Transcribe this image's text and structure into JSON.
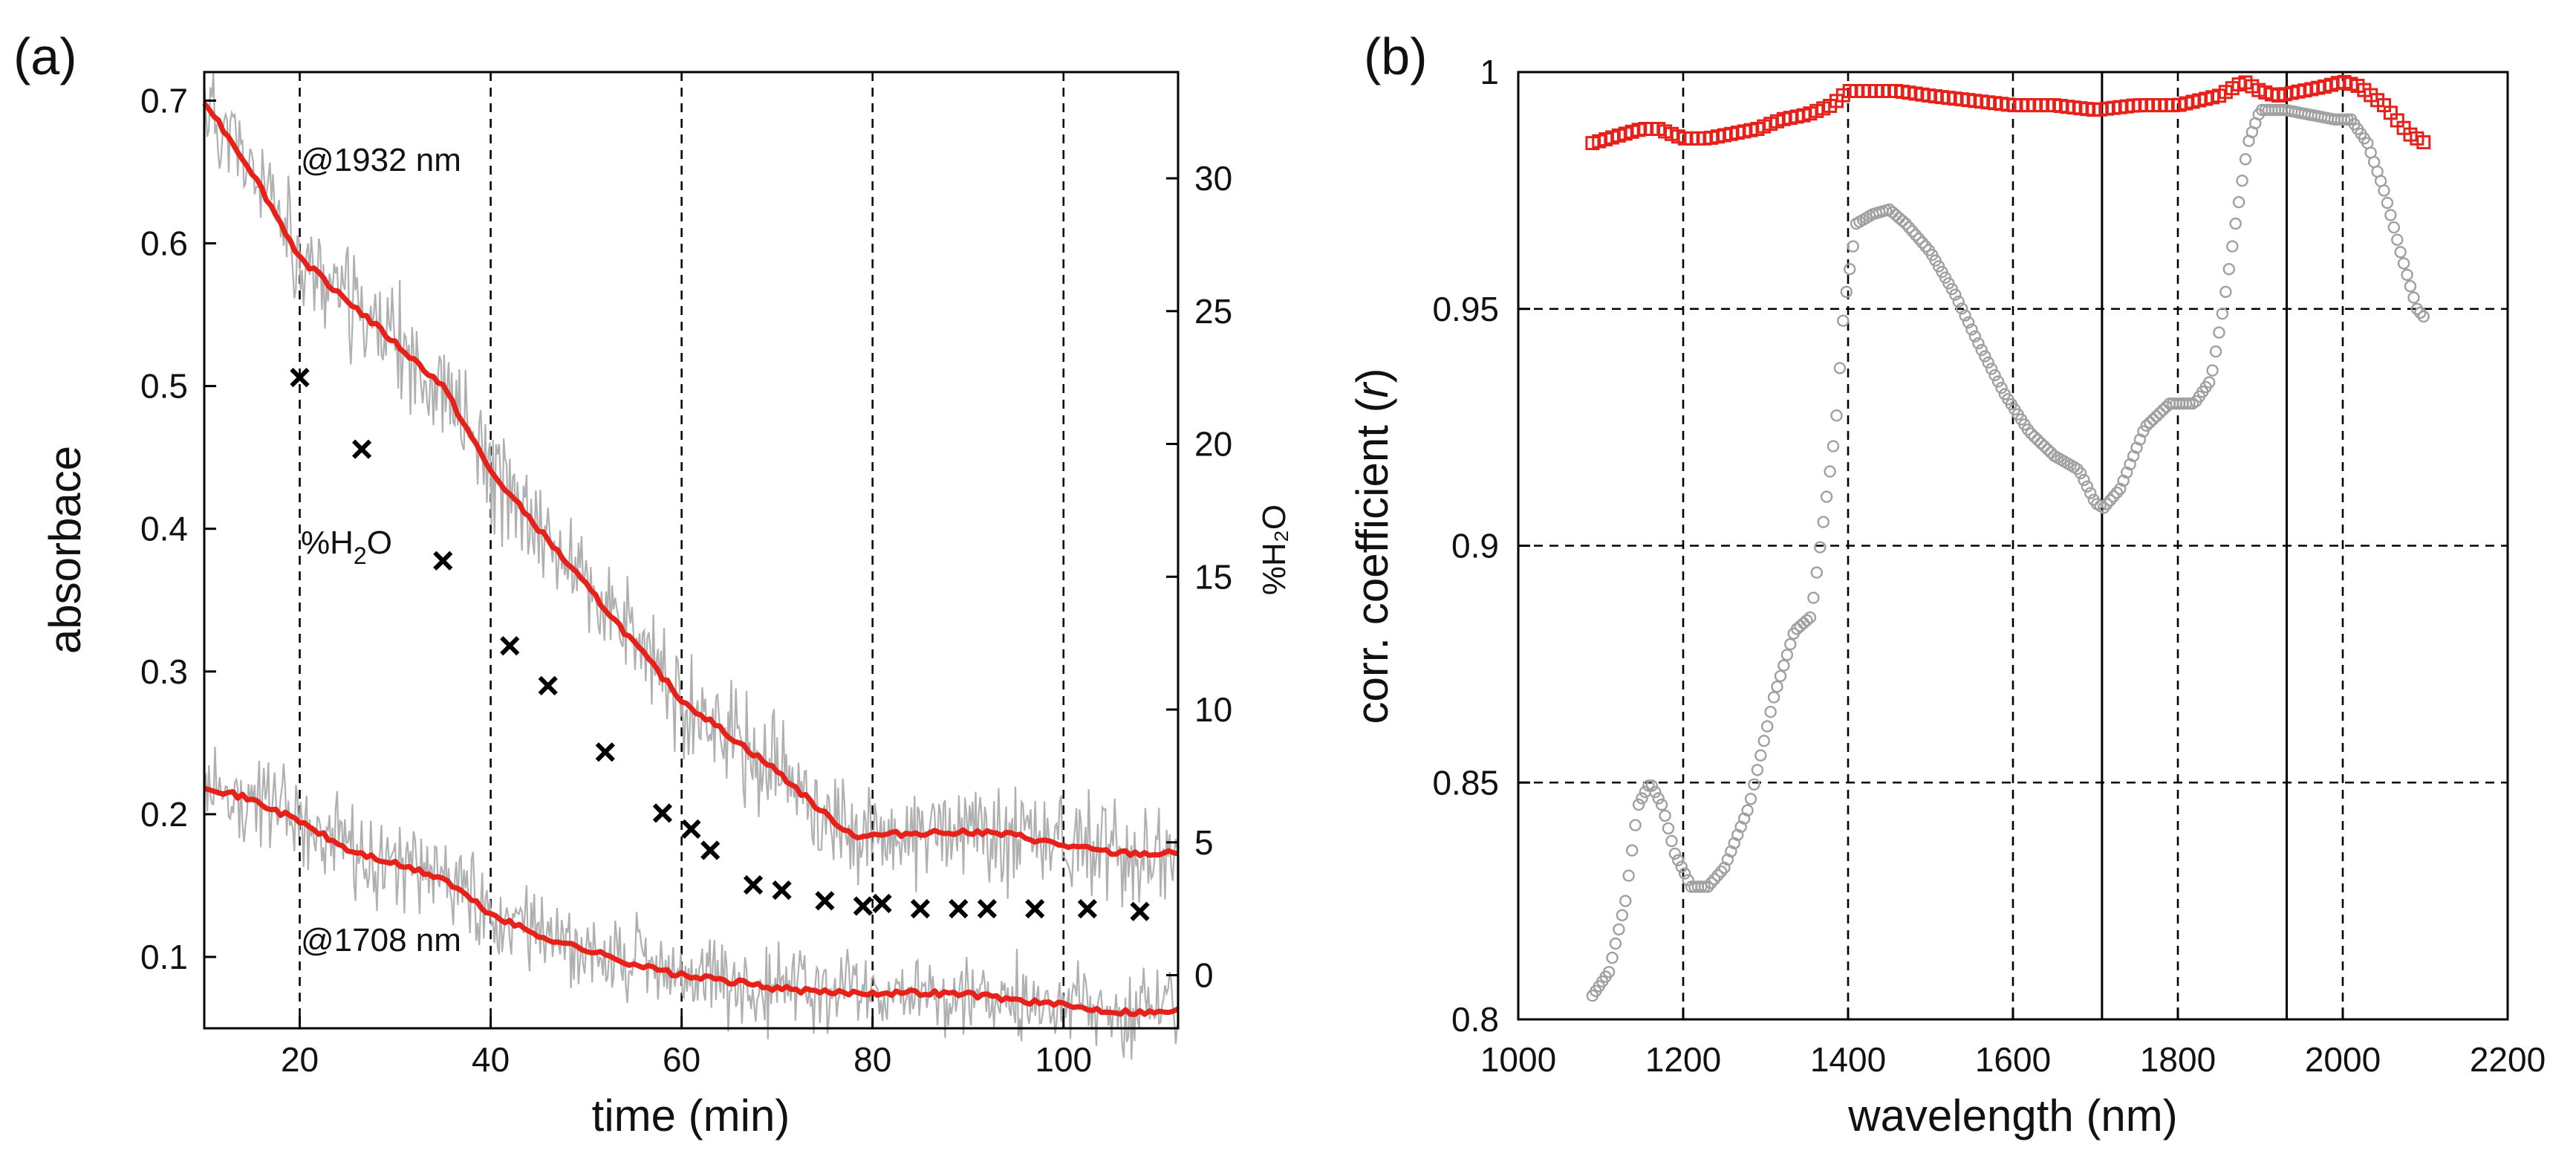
{
  "colors": {
    "red": "#e8201a",
    "gray": "#b0b0b0",
    "marker_gray": "#a0a0a0",
    "black": "#000000"
  },
  "chart_data": [
    {
      "type": "line",
      "panel_label": "(a)",
      "xlabel": "time (min)",
      "ylabel": "absorbace",
      "y2label": "%H₂O",
      "xlim": [
        10,
        112
      ],
      "ylim": [
        0.05,
        0.72
      ],
      "y2lim": [
        -2,
        34
      ],
      "xticks": [
        "20",
        "40",
        "60",
        "80",
        "100"
      ],
      "yticks": [
        "0.1",
        "0.2",
        "0.3",
        "0.4",
        "0.5",
        "0.6",
        "0.7"
      ],
      "y2ticks": [
        "0",
        "5",
        "10",
        "15",
        "20",
        "25",
        "30"
      ],
      "annotations": {
        "a1932": "@1932 nm",
        "a1708": "@1708 nm",
        "h2o_pre": "%H",
        "h2o_sub": "2",
        "h2o_post": "O"
      },
      "series": [
        {
          "name": "absorbance @1932 nm (smoothed)",
          "axis": "left",
          "color": "#e8201a",
          "x": [
            10,
            15,
            20,
            25,
            30,
            35,
            40,
            45,
            50,
            55,
            60,
            65,
            70,
            75,
            78,
            80,
            85,
            90,
            95,
            100,
            105,
            110,
            112
          ],
          "y": [
            0.7,
            0.65,
            0.59,
            0.56,
            0.53,
            0.5,
            0.44,
            0.4,
            0.36,
            0.32,
            0.28,
            0.255,
            0.23,
            0.2,
            0.185,
            0.185,
            0.187,
            0.188,
            0.185,
            0.178,
            0.173,
            0.172,
            0.173
          ]
        },
        {
          "name": "absorbance @1708 nm (smoothed)",
          "axis": "left",
          "color": "#e8201a",
          "x": [
            10,
            15,
            20,
            25,
            30,
            35,
            40,
            45,
            50,
            55,
            60,
            65,
            70,
            75,
            80,
            85,
            90,
            95,
            100,
            105,
            110,
            112
          ],
          "y": [
            0.22,
            0.21,
            0.195,
            0.175,
            0.165,
            0.155,
            0.13,
            0.115,
            0.105,
            0.095,
            0.087,
            0.083,
            0.078,
            0.075,
            0.075,
            0.075,
            0.074,
            0.07,
            0.066,
            0.062,
            0.061,
            0.063
          ]
        },
        {
          "name": "%H₂O",
          "axis": "right",
          "marker": "x",
          "color": "#000000",
          "x": [
            20,
            26.5,
            35,
            42,
            46,
            52,
            58,
            61,
            63,
            67.5,
            70.5,
            75,
            79,
            81,
            85,
            89,
            92,
            97,
            102.5,
            108
          ],
          "y": [
            22.5,
            19.8,
            15.6,
            12.4,
            10.9,
            8.4,
            6.1,
            5.5,
            4.7,
            3.4,
            3.2,
            2.8,
            2.6,
            2.7,
            2.5,
            2.5,
            2.5,
            2.5,
            2.5,
            2.4
          ]
        }
      ]
    },
    {
      "type": "scatter",
      "panel_label": "(b)",
      "xlabel": "wavelength (nm)",
      "ylabel_pre": "corr. coefficient (",
      "ylabel_var": "r",
      "ylabel_post": ")",
      "xlim": [
        1000,
        2200
      ],
      "ylim": [
        0.8,
        1.0
      ],
      "xticks": [
        "1000",
        "1200",
        "1400",
        "1600",
        "1800",
        "2000",
        "2200"
      ],
      "yticks": [
        "0.8",
        "0.85",
        "0.9",
        "0.95",
        "1"
      ],
      "vlines": [
        1708,
        1932
      ],
      "series": [
        {
          "name": "red squares",
          "marker": "square",
          "color": "#e8201a",
          "x": [
            1090,
            1110,
            1130,
            1150,
            1170,
            1200,
            1230,
            1260,
            1290,
            1320,
            1350,
            1380,
            1400,
            1430,
            1460,
            1500,
            1550,
            1600,
            1650,
            1700,
            1750,
            1800,
            1850,
            1880,
            1900,
            1920,
            1950,
            1980,
            2000,
            2020,
            2050,
            2080,
            2100
          ],
          "y": [
            0.985,
            0.986,
            0.987,
            0.988,
            0.988,
            0.986,
            0.986,
            0.987,
            0.988,
            0.99,
            0.991,
            0.993,
            0.996,
            0.996,
            0.996,
            0.995,
            0.994,
            0.993,
            0.993,
            0.992,
            0.993,
            0.993,
            0.995,
            0.998,
            0.996,
            0.995,
            0.996,
            0.997,
            0.998,
            0.997,
            0.993,
            0.987,
            0.985
          ]
        },
        {
          "name": "gray circles",
          "marker": "circle",
          "color": "#a0a0a0",
          "x": [
            1090,
            1110,
            1130,
            1145,
            1160,
            1175,
            1190,
            1210,
            1230,
            1250,
            1280,
            1310,
            1335,
            1355,
            1370,
            1385,
            1395,
            1410,
            1430,
            1450,
            1470,
            1500,
            1530,
            1560,
            1590,
            1620,
            1650,
            1680,
            1700,
            1710,
            1730,
            1760,
            1790,
            1820,
            1840,
            1855,
            1870,
            1885,
            1900,
            1930,
            1960,
            1990,
            2010,
            2030,
            2050,
            2070,
            2090,
            2100
          ],
          "y": [
            0.805,
            0.81,
            0.825,
            0.845,
            0.85,
            0.845,
            0.835,
            0.828,
            0.828,
            0.832,
            0.845,
            0.868,
            0.882,
            0.885,
            0.905,
            0.925,
            0.95,
            0.968,
            0.97,
            0.971,
            0.968,
            0.962,
            0.953,
            0.942,
            0.932,
            0.924,
            0.919,
            0.916,
            0.909,
            0.908,
            0.912,
            0.925,
            0.93,
            0.93,
            0.935,
            0.95,
            0.968,
            0.985,
            0.992,
            0.992,
            0.991,
            0.99,
            0.99,
            0.985,
            0.975,
            0.962,
            0.95,
            0.948
          ]
        }
      ]
    }
  ]
}
